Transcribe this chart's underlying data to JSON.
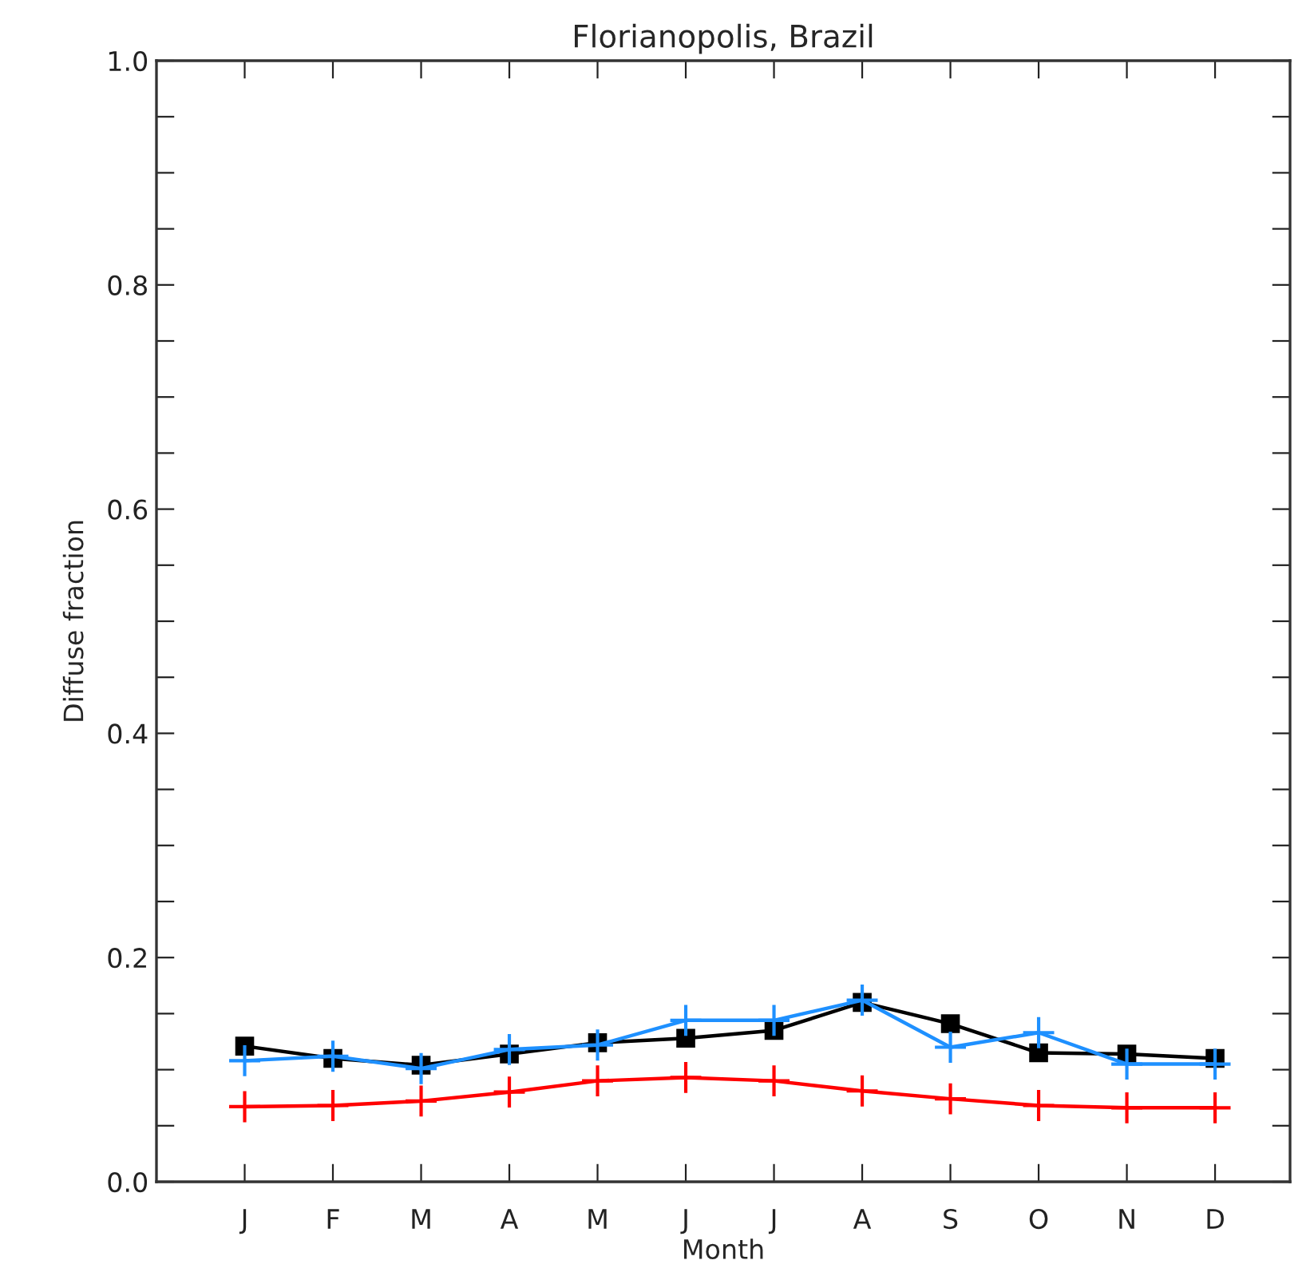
{
  "chart_data": {
    "type": "line",
    "title": "Florianopolis, Brazil",
    "xlabel": "Month",
    "ylabel": "Diffuse fraction",
    "categories": [
      "J",
      "F",
      "M",
      "A",
      "M",
      "J",
      "J",
      "A",
      "S",
      "O",
      "N",
      "D"
    ],
    "series": [
      {
        "color": "#000000",
        "marker": "square",
        "values": [
          0.121,
          0.11,
          0.104,
          0.114,
          0.124,
          0.128,
          0.135,
          0.16,
          0.141,
          0.115,
          0.114,
          0.11
        ]
      },
      {
        "color": "#1e90ff",
        "marker": "cross",
        "values": [
          0.108,
          0.112,
          0.101,
          0.118,
          0.122,
          0.144,
          0.144,
          0.162,
          0.12,
          0.133,
          0.105,
          0.105
        ]
      },
      {
        "color": "#ff0000",
        "marker": "cross",
        "values": [
          0.067,
          0.068,
          0.072,
          0.08,
          0.09,
          0.093,
          0.09,
          0.081,
          0.074,
          0.068,
          0.066,
          0.066
        ]
      }
    ],
    "ylim": [
      0,
      1.0
    ],
    "yticks": [
      {
        "value": 0,
        "label": "0.0"
      },
      {
        "value": 0.05,
        "label": null
      },
      {
        "value": 0.1,
        "label": null
      },
      {
        "value": 0.15,
        "label": null
      },
      0.2,
      {
        "value": 0.25,
        "label": null
      },
      {
        "value": 0.3,
        "label": null
      },
      {
        "value": 0.35,
        "label": null
      },
      0.4,
      {
        "value": 0.45,
        "label": null
      },
      {
        "value": 0.5,
        "label": null
      },
      {
        "value": 0.55,
        "label": null
      },
      0.6,
      {
        "value": 0.65,
        "label": null
      },
      {
        "value": 0.7,
        "label": null
      },
      {
        "value": 0.75,
        "label": null
      },
      0.8,
      {
        "value": 0.85,
        "label": null
      },
      {
        "value": 0.9,
        "label": null
      },
      {
        "value": 0.95,
        "label": null
      },
      {
        "value": 1.0,
        "label": "1.0"
      }
    ],
    "grid": false,
    "line_style": "solid"
  }
}
